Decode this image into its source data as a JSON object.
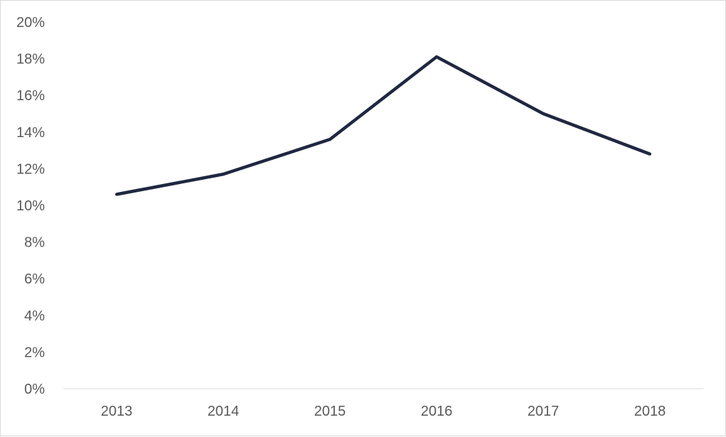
{
  "chart_data": {
    "type": "line",
    "categories": [
      "2013",
      "2014",
      "2015",
      "2016",
      "2017",
      "2018"
    ],
    "series": [
      {
        "values": [
          10.6,
          11.7,
          13.6,
          18.1,
          15.0,
          12.8
        ]
      }
    ],
    "ylim": [
      0,
      20
    ],
    "y_ticks": [
      "0%",
      "2%",
      "4%",
      "6%",
      "8%",
      "10%",
      "12%",
      "14%",
      "16%",
      "18%",
      "20%"
    ],
    "grid": false,
    "legend": "none",
    "colors": {
      "line": "#1f2840",
      "axis": "#d9d9d9",
      "text": "#595959"
    }
  }
}
